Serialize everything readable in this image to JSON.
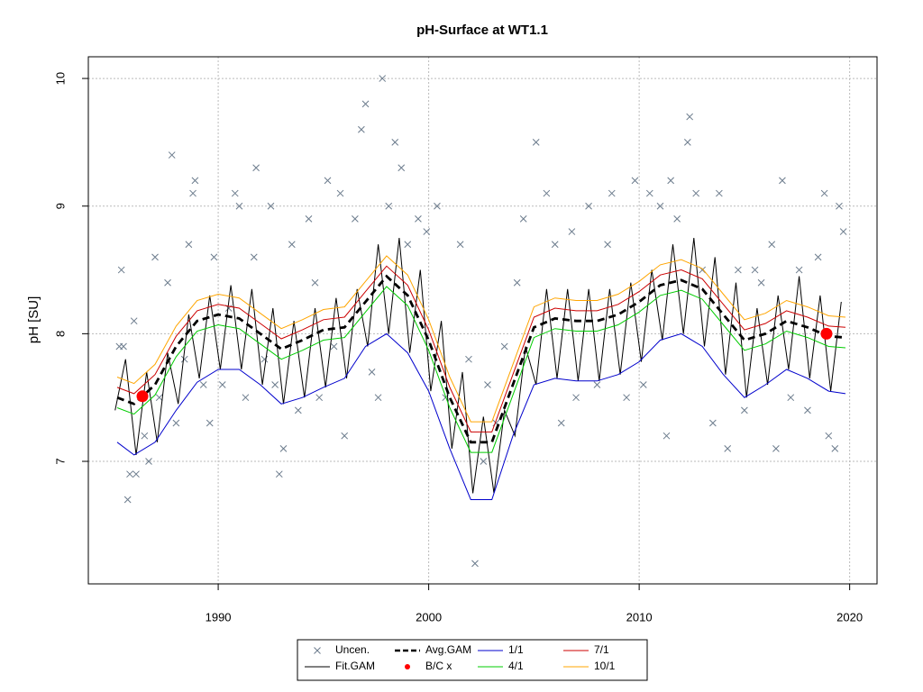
{
  "chart_data": {
    "type": "line",
    "title": "pH-Surface at WT1.1",
    "y_label": "pH [SU]",
    "xlim": [
      1983.83,
      2021.3
    ],
    "ylim": [
      6.04,
      10.17
    ],
    "xticks": [
      1990,
      2000,
      2010,
      2020
    ],
    "yticks": [
      7,
      8,
      9,
      10
    ],
    "grid": true,
    "legend": "bottom",
    "x": [
      1985.2,
      1986,
      1987,
      1988,
      1989,
      1990,
      1991,
      1992,
      1993,
      1994,
      1995,
      1996,
      1997,
      1998,
      1999,
      2000,
      2001,
      2002,
      2003,
      2004,
      2005,
      2006,
      2007,
      2008,
      2009,
      2010,
      2011,
      2012,
      2013,
      2014,
      2015,
      2016,
      2017,
      2018,
      2019,
      2019.8
    ],
    "series": [
      {
        "name": "Uncen.",
        "color": "#6b7b8c",
        "style": "x-points",
        "x": [
          1985.3,
          1985.4,
          1985.5,
          1985.7,
          1985.8,
          1986,
          1986.1,
          1986.5,
          1986.7,
          1987,
          1987.2,
          1987.6,
          1987.8,
          1988,
          1988.4,
          1988.6,
          1988.8,
          1988.9,
          1989.3,
          1989.6,
          1989.8,
          1990.2,
          1990.5,
          1990.8,
          1991,
          1991.3,
          1991.7,
          1991.8,
          1992.2,
          1992.5,
          1992.7,
          1992.9,
          1993.1,
          1993.5,
          1993.8,
          1994.3,
          1994.6,
          1994.8,
          1995.2,
          1995.5,
          1995.8,
          1996,
          1996.5,
          1996.8,
          1997,
          1997.3,
          1997.6,
          1997.8,
          1998.1,
          1998.4,
          1998.7,
          1999,
          1999.5,
          1999.9,
          2000.4,
          2000.8,
          2001.5,
          2001.9,
          2002.2,
          2002.6,
          2002.8,
          2003.2,
          2003.6,
          2004.2,
          2004.5,
          2005.1,
          2005.6,
          2006,
          2006.3,
          2006.8,
          2007,
          2007.6,
          2008,
          2008.5,
          2008.7,
          2009.4,
          2009.8,
          2010.2,
          2010.5,
          2011,
          2011.3,
          2011.5,
          2011.8,
          2012.3,
          2012.4,
          2012.7,
          2013,
          2013.5,
          2013.8,
          2014.2,
          2014.7,
          2015,
          2015.5,
          2015.8,
          2016.3,
          2016.5,
          2016.8,
          2017.2,
          2017.6,
          2018,
          2018.5,
          2018.8,
          2019,
          2019.3,
          2019.5,
          2019.7
        ],
        "values": [
          7.9,
          8.5,
          7.9,
          6.7,
          6.9,
          8.1,
          6.9,
          7.2,
          7.0,
          8.6,
          7.5,
          8.4,
          9.4,
          7.3,
          7.8,
          8.7,
          9.1,
          9.2,
          7.6,
          7.3,
          8.6,
          7.6,
          8.2,
          9.1,
          9.0,
          7.5,
          8.6,
          9.3,
          7.8,
          9.0,
          7.6,
          6.9,
          7.1,
          8.7,
          7.4,
          8.9,
          8.4,
          7.5,
          9.2,
          7.9,
          9.1,
          7.2,
          8.9,
          9.6,
          9.8,
          7.7,
          7.5,
          10.0,
          9.0,
          9.5,
          9.3,
          8.7,
          8.9,
          8.8,
          9.0,
          7.5,
          8.7,
          7.8,
          6.2,
          7.0,
          7.6,
          7.3,
          7.9,
          8.4,
          8.9,
          9.5,
          9.1,
          8.7,
          7.3,
          8.8,
          7.5,
          9.0,
          7.6,
          8.7,
          9.1,
          7.5,
          9.2,
          7.6,
          9.1,
          9.0,
          7.2,
          9.2,
          8.9,
          9.5,
          9.7,
          9.1,
          8.5,
          7.3,
          9.1,
          7.1,
          8.5,
          7.4,
          8.5,
          8.4,
          8.7,
          7.1,
          9.2,
          7.5,
          8.5,
          7.4,
          8.6,
          9.1,
          7.2,
          7.1,
          9.0,
          8.8
        ]
      },
      {
        "name": "Fit.GAM",
        "color": "#000000",
        "style": "line",
        "x": [
          1985.1,
          1985.6,
          1986.1,
          1986.6,
          1987.1,
          1987.6,
          1988.1,
          1988.6,
          1989.1,
          1989.6,
          1990.1,
          1990.6,
          1991.1,
          1991.6,
          1992.1,
          1992.6,
          1993.1,
          1993.6,
          1994.1,
          1994.6,
          1995.1,
          1995.6,
          1996.1,
          1996.6,
          1997.1,
          1997.6,
          1998.1,
          1998.6,
          1999.1,
          1999.6,
          2000.1,
          2000.6,
          2001.1,
          2001.6,
          2002.1,
          2002.6,
          2003.1,
          2003.6,
          2004.1,
          2004.6,
          2005.1,
          2005.6,
          2006.1,
          2006.6,
          2007.1,
          2007.6,
          2008.1,
          2008.6,
          2009.1,
          2009.6,
          2010.1,
          2010.6,
          2011.1,
          2011.6,
          2012.1,
          2012.6,
          2013.1,
          2013.6,
          2014.1,
          2014.6,
          2015.1,
          2015.6,
          2016.1,
          2016.6,
          2017.1,
          2017.6,
          2018.1,
          2018.6,
          2019.1,
          2019.6
        ],
        "values": [
          7.4,
          7.8,
          7.05,
          7.7,
          7.15,
          7.85,
          7.45,
          8.15,
          7.65,
          8.3,
          7.72,
          8.38,
          7.72,
          8.35,
          7.6,
          8.2,
          7.45,
          8.1,
          7.5,
          8.2,
          7.58,
          8.28,
          7.65,
          8.35,
          7.9,
          8.7,
          8.0,
          8.75,
          7.85,
          8.5,
          7.55,
          8.1,
          7.1,
          7.7,
          6.75,
          7.35,
          6.75,
          7.4,
          7.2,
          7.9,
          7.6,
          8.35,
          7.65,
          8.35,
          7.63,
          8.35,
          7.63,
          8.35,
          7.68,
          8.4,
          7.78,
          8.5,
          7.95,
          8.7,
          8.0,
          8.75,
          7.9,
          8.6,
          7.68,
          8.4,
          7.5,
          8.2,
          7.6,
          8.3,
          7.72,
          8.45,
          7.65,
          8.3,
          7.55,
          8.25
        ]
      },
      {
        "name": "Avg.GAM",
        "color": "#000000",
        "style": "dashed",
        "values": [
          7.5,
          7.45,
          7.6,
          7.9,
          8.1,
          8.15,
          8.12,
          8.0,
          7.88,
          7.95,
          8.03,
          8.05,
          8.25,
          8.45,
          8.3,
          7.95,
          7.5,
          7.15,
          7.15,
          7.6,
          8.05,
          8.12,
          8.1,
          8.1,
          8.15,
          8.25,
          8.38,
          8.42,
          8.35,
          8.15,
          7.95,
          8.0,
          8.1,
          8.05,
          7.98,
          7.97
        ]
      },
      {
        "name": "B/C x",
        "color": "#ff0000",
        "style": "dots",
        "x": [
          1986.4,
          2018.9
        ],
        "values": [
          7.51,
          8.0
        ]
      },
      {
        "name": "1/1",
        "color": "#0000cc",
        "style": "line",
        "values": [
          7.15,
          7.05,
          7.15,
          7.4,
          7.62,
          7.72,
          7.72,
          7.6,
          7.45,
          7.5,
          7.58,
          7.65,
          7.9,
          8.0,
          7.85,
          7.55,
          7.1,
          6.7,
          6.7,
          7.2,
          7.6,
          7.65,
          7.63,
          7.63,
          7.68,
          7.78,
          7.95,
          8.0,
          7.9,
          7.68,
          7.5,
          7.6,
          7.72,
          7.65,
          7.55,
          7.53
        ]
      },
      {
        "name": "4/1",
        "color": "#00cc00",
        "style": "line",
        "values": [
          7.42,
          7.37,
          7.52,
          7.82,
          8.02,
          8.07,
          8.04,
          7.92,
          7.8,
          7.87,
          7.95,
          7.97,
          8.17,
          8.37,
          8.22,
          7.87,
          7.42,
          7.07,
          7.07,
          7.52,
          7.97,
          8.04,
          8.02,
          8.02,
          8.07,
          8.17,
          8.3,
          8.34,
          8.27,
          8.07,
          7.87,
          7.92,
          8.02,
          7.97,
          7.9,
          7.89
        ]
      },
      {
        "name": "7/1",
        "color": "#cc0000",
        "style": "line",
        "values": [
          7.58,
          7.53,
          7.68,
          7.98,
          8.18,
          8.23,
          8.2,
          8.08,
          7.96,
          8.03,
          8.11,
          8.13,
          8.33,
          8.53,
          8.38,
          8.03,
          7.58,
          7.23,
          7.23,
          7.68,
          8.13,
          8.2,
          8.18,
          8.18,
          8.23,
          8.33,
          8.46,
          8.5,
          8.43,
          8.23,
          8.03,
          8.08,
          8.18,
          8.13,
          8.06,
          8.05
        ]
      },
      {
        "name": "10/1",
        "color": "#ffa500",
        "style": "line",
        "values": [
          7.66,
          7.61,
          7.76,
          8.06,
          8.26,
          8.31,
          8.28,
          8.16,
          8.04,
          8.11,
          8.19,
          8.21,
          8.41,
          8.61,
          8.46,
          8.11,
          7.66,
          7.31,
          7.31,
          7.76,
          8.21,
          8.28,
          8.26,
          8.26,
          8.31,
          8.41,
          8.54,
          8.58,
          8.51,
          8.31,
          8.11,
          8.16,
          8.26,
          8.21,
          8.14,
          8.13
        ]
      }
    ]
  }
}
